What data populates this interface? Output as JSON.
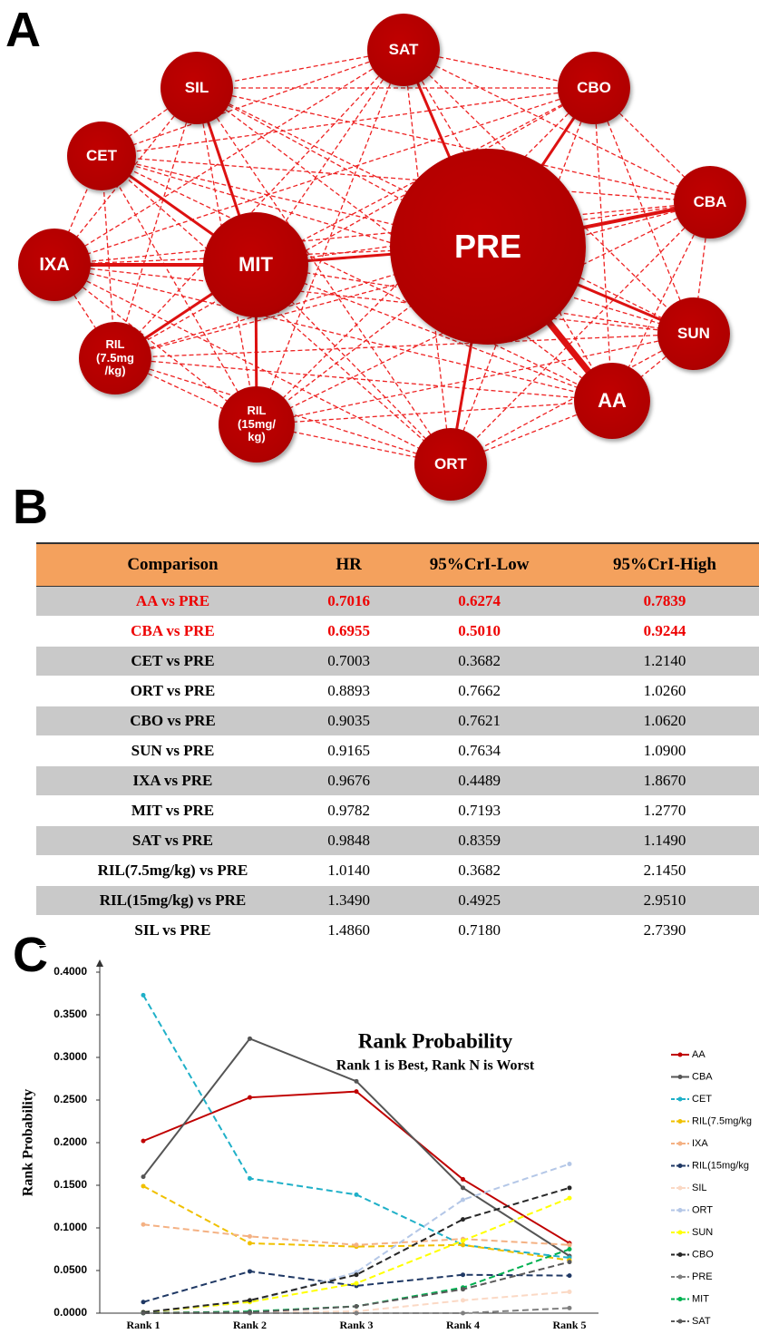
{
  "panels": [
    "A",
    "B",
    "C"
  ],
  "network": {
    "nodes": [
      "SAT",
      "CBO",
      "SIL",
      "CET",
      "CBA",
      "IXA",
      "MIT",
      "PRE",
      "SUN",
      "RIL\n(7.5mg\n/kg)",
      "RIL\n(15mg/\nkg)",
      "ORT",
      "AA"
    ]
  },
  "table": {
    "header": [
      "Comparison",
      "HR",
      "95%CrI-Low",
      "95%CrI-High"
    ],
    "header_color": "#f4a15d",
    "stripe_color": "#c9c9c9",
    "rows": [
      {
        "cells": [
          "AA vs PRE",
          "0.7016",
          "0.6274",
          "0.7839"
        ],
        "color": "#ee0000"
      },
      {
        "cells": [
          "CBA vs PRE",
          "0.6955",
          "0.5010",
          "0.9244"
        ],
        "color": "#ee0000"
      },
      {
        "cells": [
          "CET vs PRE",
          "0.7003",
          "0.3682",
          "1.2140"
        ]
      },
      {
        "cells": [
          "ORT vs PRE",
          "0.8893",
          "0.7662",
          "1.0260"
        ]
      },
      {
        "cells": [
          "CBO vs PRE",
          "0.9035",
          "0.7621",
          "1.0620"
        ]
      },
      {
        "cells": [
          "SUN vs PRE",
          "0.9165",
          "0.7634",
          "1.0900"
        ]
      },
      {
        "cells": [
          "IXA vs PRE",
          "0.9676",
          "0.4489",
          "1.8670"
        ]
      },
      {
        "cells": [
          "MIT vs PRE",
          "0.9782",
          "0.7193",
          "1.2770"
        ]
      },
      {
        "cells": [
          "SAT vs PRE",
          "0.9848",
          "0.8359",
          "1.1490"
        ]
      },
      {
        "cells": [
          "RIL(7.5mg/kg) vs PRE",
          "1.0140",
          "0.3682",
          "2.1450"
        ]
      },
      {
        "cells": [
          "RIL(15mg/kg) vs PRE",
          "1.3490",
          "0.4925",
          "2.9510"
        ]
      },
      {
        "cells": [
          "SIL vs PRE",
          "1.4860",
          "0.7180",
          "2.7390"
        ]
      }
    ]
  },
  "chart_data": {
    "type": "line",
    "title": "Rank Probability",
    "subtitle": "Rank 1 is Best, Rank N is Worst",
    "y_label": "Rank Probability",
    "categories": [
      "Rank 1",
      "Rank 2",
      "Rank 3",
      "Rank 4",
      "Rank 5"
    ],
    "ylim": [
      0,
      0.4
    ],
    "yticks": [
      {
        "value": 0,
        "label": "0.0000"
      },
      {
        "value": 0.05,
        "label": "0.0500"
      },
      {
        "value": 0.1,
        "label": "0.1000"
      },
      {
        "value": 0.15,
        "label": "0.1500"
      },
      {
        "value": 0.2,
        "label": "0.2000"
      },
      {
        "value": 0.25,
        "label": "0.2500"
      },
      {
        "value": 0.3,
        "label": "0.3000"
      },
      {
        "value": 0.35,
        "label": "0.3500"
      },
      {
        "value": 0.4,
        "label": "0.4000"
      }
    ],
    "series": [
      {
        "name": "AA",
        "color": "#c00000",
        "dashed": false,
        "values": [
          0.202,
          0.253,
          0.26,
          0.157,
          0.082
        ]
      },
      {
        "name": "CBA",
        "color": "#555555",
        "dashed": false,
        "values": [
          0.16,
          0.322,
          0.272,
          0.147,
          0.067
        ]
      },
      {
        "name": "CET",
        "color": "#1fb0c8",
        "dashed": true,
        "values": [
          0.373,
          0.158,
          0.139,
          0.08,
          0.065
        ]
      },
      {
        "name": "RIL(7.5mg/kg",
        "color": "#f0c000",
        "dashed": true,
        "values": [
          0.149,
          0.082,
          0.078,
          0.08,
          0.062
        ]
      },
      {
        "name": "IXA",
        "color": "#f4b183",
        "dashed": true,
        "values": [
          0.104,
          0.09,
          0.08,
          0.087,
          0.08
        ]
      },
      {
        "name": "RIL(15mg/kg",
        "color": "#1f3864",
        "dashed": true,
        "values": [
          0.013,
          0.049,
          0.032,
          0.045,
          0.044
        ]
      },
      {
        "name": "SIL",
        "color": "#fbd9c5",
        "dashed": true,
        "values": [
          0.001,
          0.001,
          0.002,
          0.015,
          0.025
        ]
      },
      {
        "name": "ORT",
        "color": "#b4c7e7",
        "dashed": true,
        "values": [
          0.001,
          0.013,
          0.048,
          0.133,
          0.175
        ]
      },
      {
        "name": "SUN",
        "color": "#ffff00",
        "dashed": true,
        "values": [
          0.001,
          0.013,
          0.035,
          0.085,
          0.135
        ]
      },
      {
        "name": "CBO",
        "color": "#262626",
        "dashed": true,
        "values": [
          0.001,
          0.015,
          0.045,
          0.11,
          0.147
        ]
      },
      {
        "name": "PRE",
        "color": "#7f7f7f",
        "dashed": true,
        "values": [
          0,
          0,
          0,
          0,
          0.006
        ]
      },
      {
        "name": "MIT",
        "color": "#00b050",
        "dashed": true,
        "values": [
          0,
          0.002,
          0.008,
          0.03,
          0.075
        ]
      },
      {
        "name": "SAT",
        "color": "#595959",
        "dashed": true,
        "values": [
          0,
          0.001,
          0.008,
          0.028,
          0.06
        ]
      }
    ]
  }
}
